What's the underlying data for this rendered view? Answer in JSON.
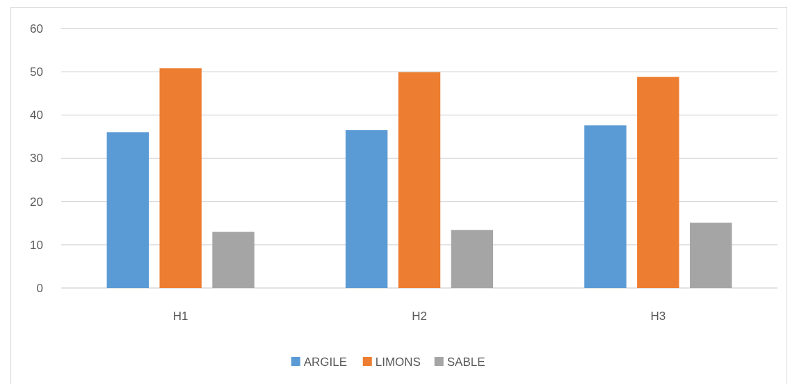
{
  "chart_data": {
    "type": "bar",
    "categories": [
      "H1",
      "H2",
      "H3"
    ],
    "series": [
      {
        "name": "ARGILE",
        "color": "#5b9bd5",
        "values": [
          36,
          36.5,
          37.6
        ]
      },
      {
        "name": "LIMONS",
        "color": "#ed7d31",
        "values": [
          50.8,
          49.9,
          48.8
        ]
      },
      {
        "name": "SABLE",
        "color": "#a5a5a5",
        "values": [
          13,
          13.4,
          15.1
        ]
      }
    ],
    "ylim": [
      0,
      60
    ],
    "yticks": [
      0,
      10,
      20,
      30,
      40,
      50,
      60
    ],
    "grid": "y",
    "legend": "bottom"
  }
}
